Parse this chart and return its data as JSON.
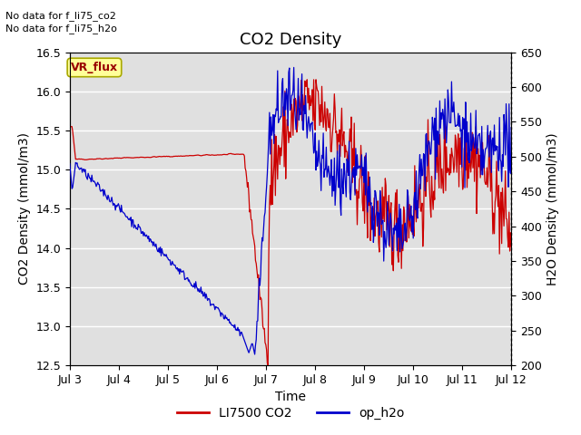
{
  "title": "CO2 Density",
  "xlabel": "Time",
  "ylabel_left": "CO2 Density (mmol/m3)",
  "ylabel_right": "H2O Density (mmol/m3)",
  "annotation1": "No data for f_li75_co2",
  "annotation2": "No data for f_li75_h2o",
  "vr_flux_label": "VR_flux",
  "ylim_left": [
    12.5,
    16.5
  ],
  "ylim_right": [
    200,
    650
  ],
  "xtick_labels": [
    "Jul 3",
    "Jul 4",
    "Jul 5",
    "Jul 6",
    "Jul 7",
    "Jul 8",
    "Jul 9",
    "Jul 10",
    "Jul 11",
    "Jul 12"
  ],
  "co2_color": "#cc0000",
  "h2o_color": "#0000cc",
  "bg_color": "#e0e0e0",
  "legend_co2": "LI7500 CO2",
  "legend_h2o": "op_h2o",
  "vr_flux_bg": "#ffff99",
  "vr_flux_text_color": "#990000"
}
